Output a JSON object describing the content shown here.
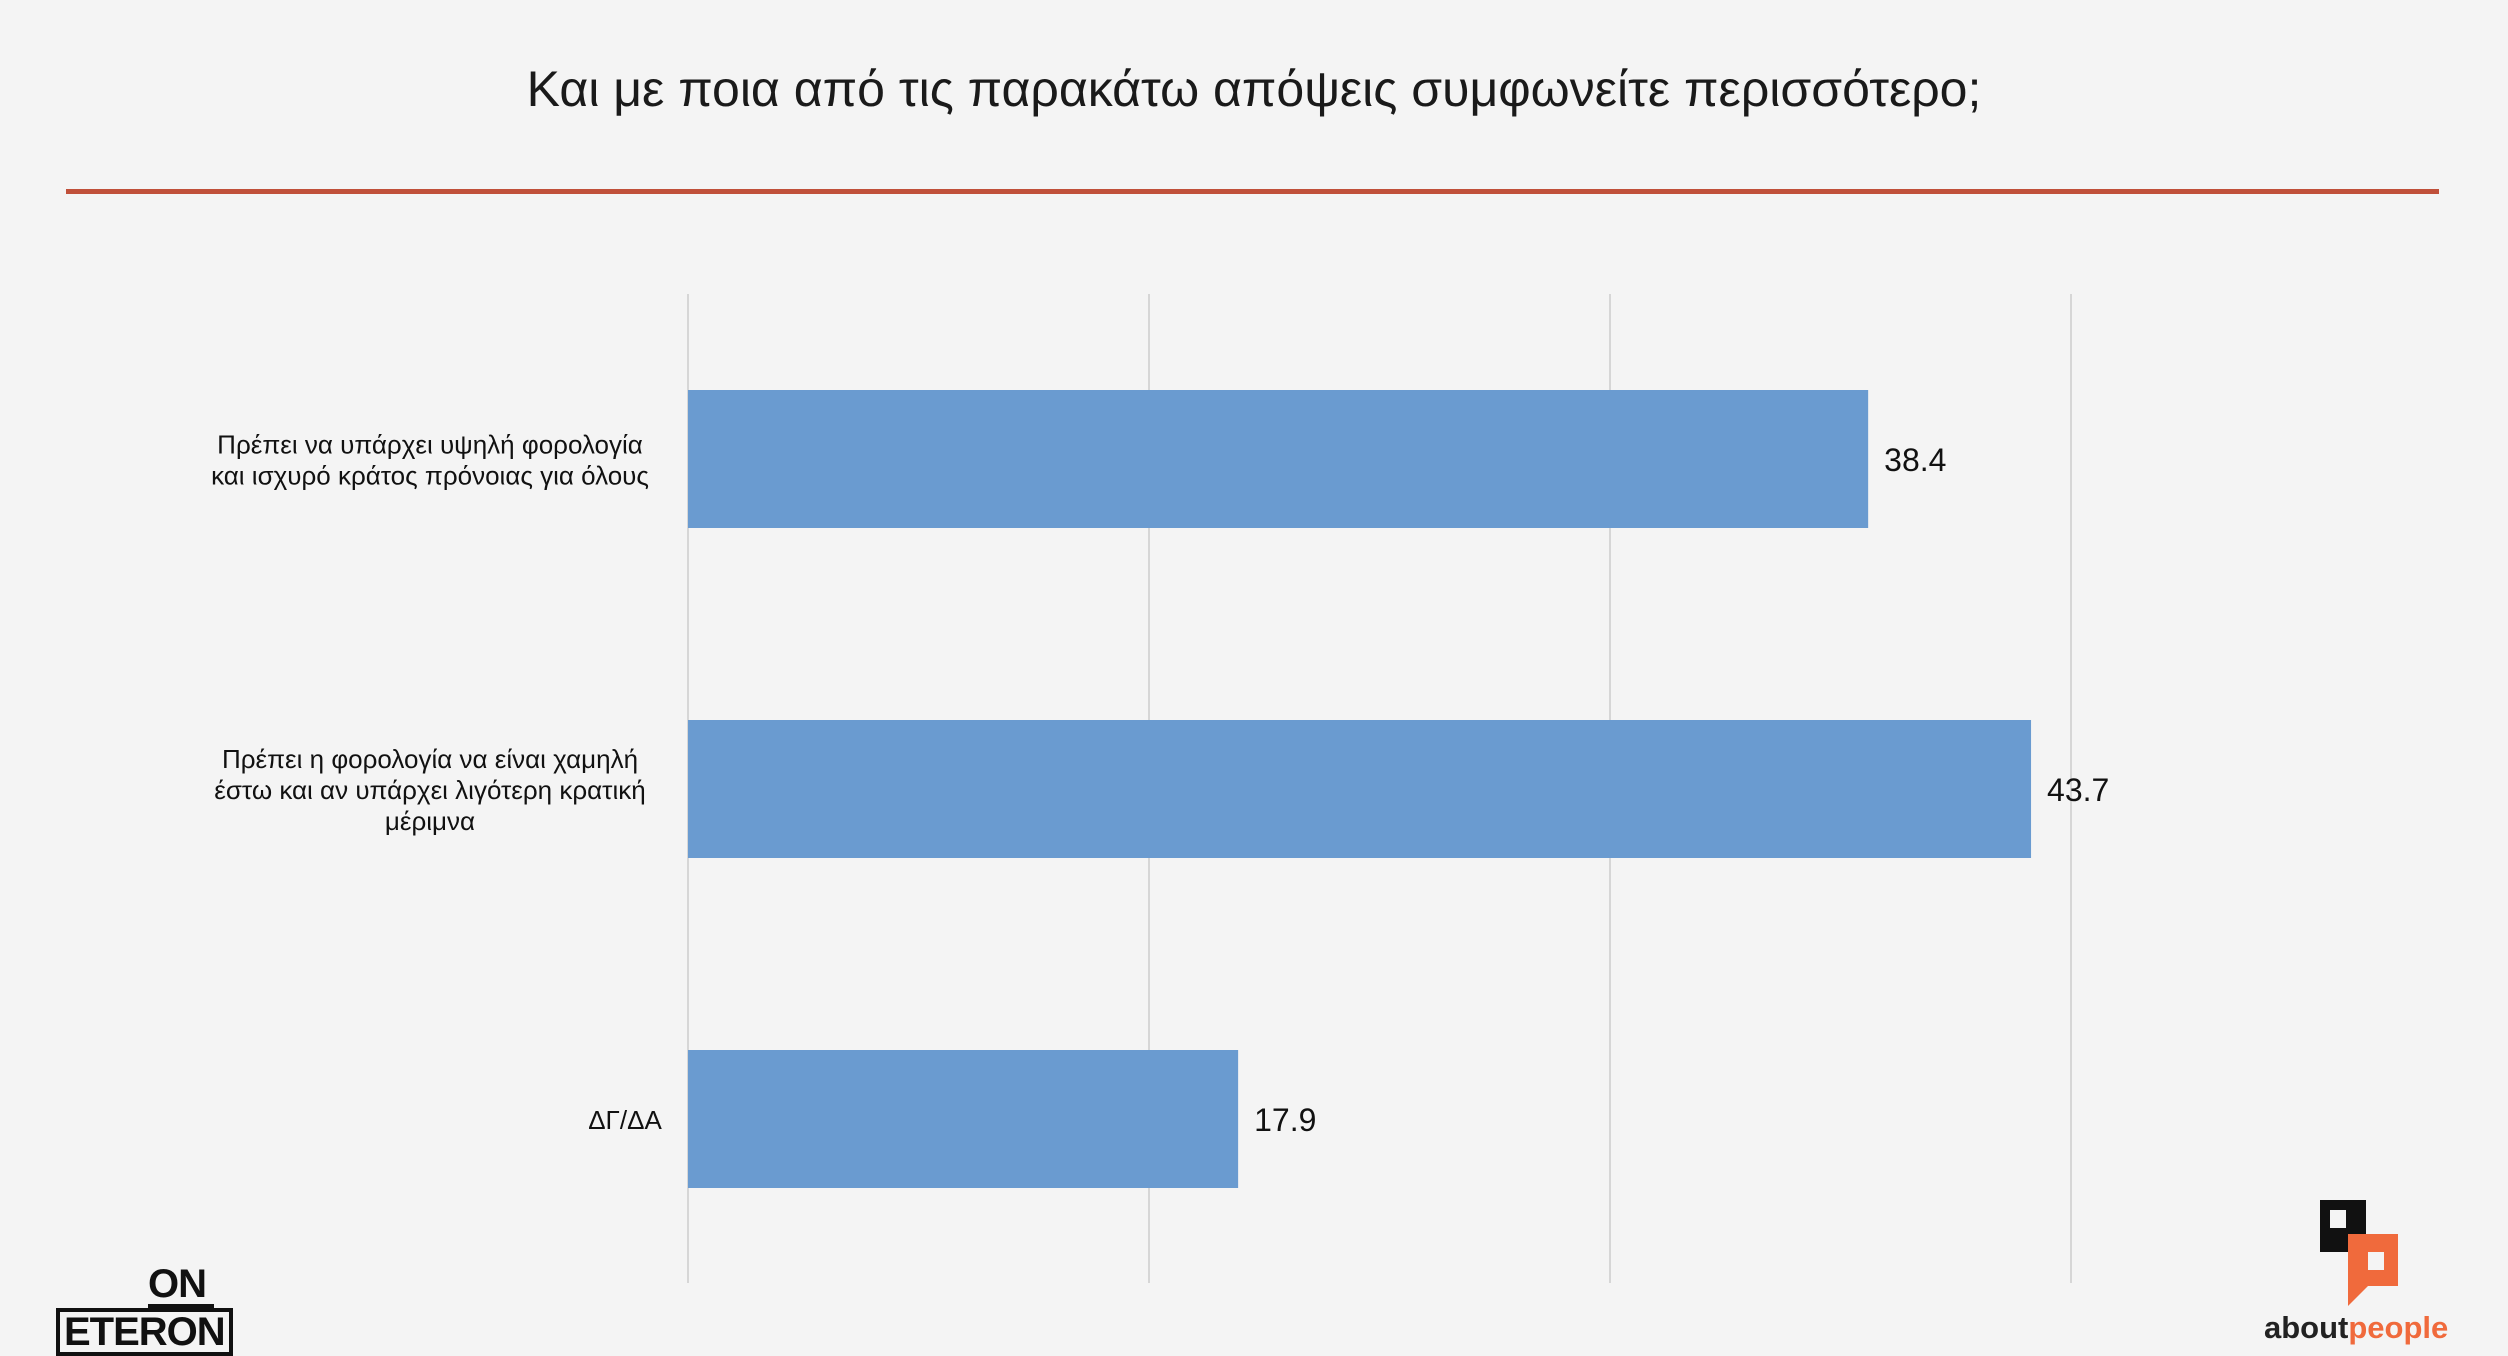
{
  "title": "Και με ποια από τις παρακάτω απόψεις συμφωνείτε περισσότερο;",
  "colors": {
    "bar": "#6a9bd0",
    "rule": "#c0503a",
    "grid": "#d6d6d6",
    "brand_accent": "#f06a3c"
  },
  "brand_left": {
    "line1": "ON",
    "line2": "ETERON"
  },
  "brand_right": {
    "part1": "about",
    "part2": "people",
    "icon": "speech-bubble-logo-icon"
  },
  "chart_data": {
    "type": "bar",
    "orientation": "horizontal",
    "categories": [
      [
        "Πρέπει να υπάρχει υψηλή φορολογία",
        "και ισχυρό κράτος πρόνοιας για όλους"
      ],
      [
        "Πρέπει η φορολογία να είναι χαμηλή",
        "έστω και αν υπάρχει λιγότερη κρατική",
        "μέριμνα"
      ],
      [
        "ΔΓ/ΔΑ"
      ]
    ],
    "values": [
      38.4,
      43.7,
      17.9
    ],
    "value_labels": [
      "38.4",
      "43.7",
      "17.9"
    ],
    "xlim": [
      0,
      60
    ],
    "grid": true,
    "legend": false
  }
}
